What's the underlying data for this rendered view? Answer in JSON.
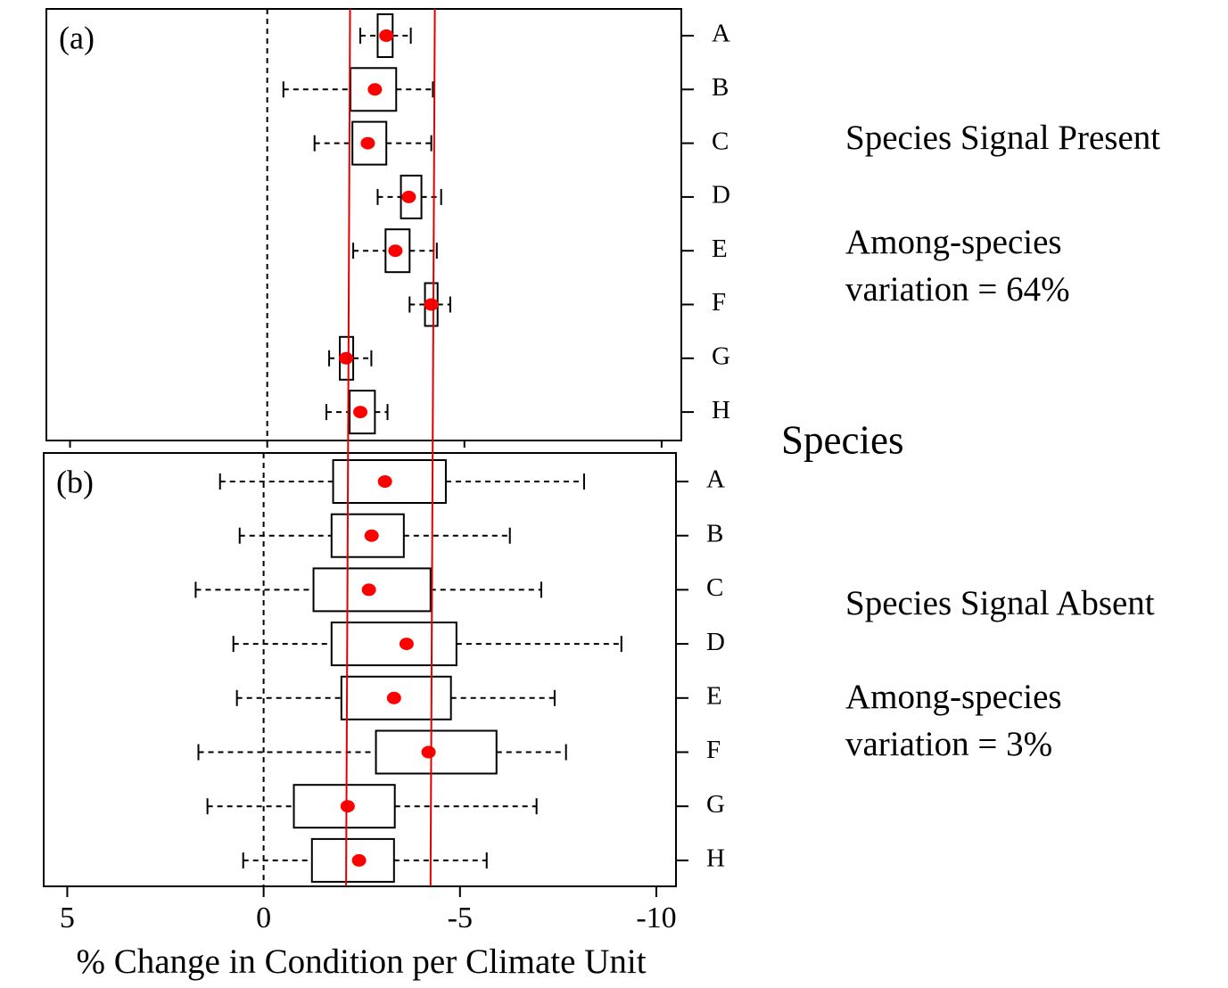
{
  "chart_data": [
    {
      "type": "boxplot",
      "panel_label": "(a)",
      "ylabel": "Species",
      "annotations": [
        "Species Signal Present",
        "Among-species",
        "variation = 64%"
      ],
      "categories": [
        "A",
        "B",
        "C",
        "D",
        "E",
        "F",
        "G",
        "H"
      ],
      "whislo": [
        -2.36,
        -0.41,
        -1.2,
        -2.8,
        -2.18,
        -3.61,
        -1.57,
        -1.5
      ],
      "q1": [
        -2.8,
        -2.11,
        -2.16,
        -3.39,
        -3.0,
        -4.0,
        -1.84,
        -2.09
      ],
      "q3": [
        -3.18,
        -3.27,
        -3.02,
        -3.91,
        -3.61,
        -4.32,
        -2.18,
        -2.73
      ],
      "whishi": [
        -3.64,
        -4.2,
        -4.16,
        -4.41,
        -4.3,
        -4.64,
        -2.64,
        -3.05
      ],
      "mean": [
        -3.02,
        -2.73,
        -2.55,
        -3.59,
        -3.25,
        -4.16,
        -2.0,
        -2.36
      ],
      "xlim": [
        5.6,
        -10.5
      ],
      "zero_line": 0,
      "ref_lines": [
        -2.1,
        -4.25
      ],
      "box_color": "#000000",
      "mean_color": "#ff0000",
      "ref_line_color": "#e00000"
    },
    {
      "type": "boxplot",
      "panel_label": "(b)",
      "xlabel": "% Change in Condition per Climate Unit",
      "annotations": [
        "Species Signal Absent",
        "Among-species",
        "variation = 3%"
      ],
      "categories": [
        "A",
        "B",
        "C",
        "D",
        "E",
        "F",
        "G",
        "H"
      ],
      "whislo": [
        1.11,
        0.61,
        1.73,
        0.77,
        0.68,
        1.66,
        1.43,
        0.52
      ],
      "q1": [
        -1.77,
        -1.73,
        -1.27,
        -1.73,
        -1.98,
        -2.86,
        -0.77,
        -1.23
      ],
      "q3": [
        -4.64,
        -3.57,
        -4.25,
        -4.91,
        -4.77,
        -5.93,
        -3.34,
        -3.32
      ],
      "whishi": [
        -8.16,
        -6.27,
        -7.07,
        -9.11,
        -7.41,
        -7.7,
        -6.95,
        -5.68
      ],
      "mean": [
        -3.09,
        -2.75,
        -2.68,
        -3.64,
        -3.32,
        -4.2,
        -2.14,
        -2.43
      ],
      "xlim": [
        5.6,
        -10.5
      ],
      "xticks": [
        5,
        0,
        -5,
        -10
      ],
      "zero_line": 0,
      "box_color": "#000000",
      "mean_color": "#ff0000"
    }
  ]
}
